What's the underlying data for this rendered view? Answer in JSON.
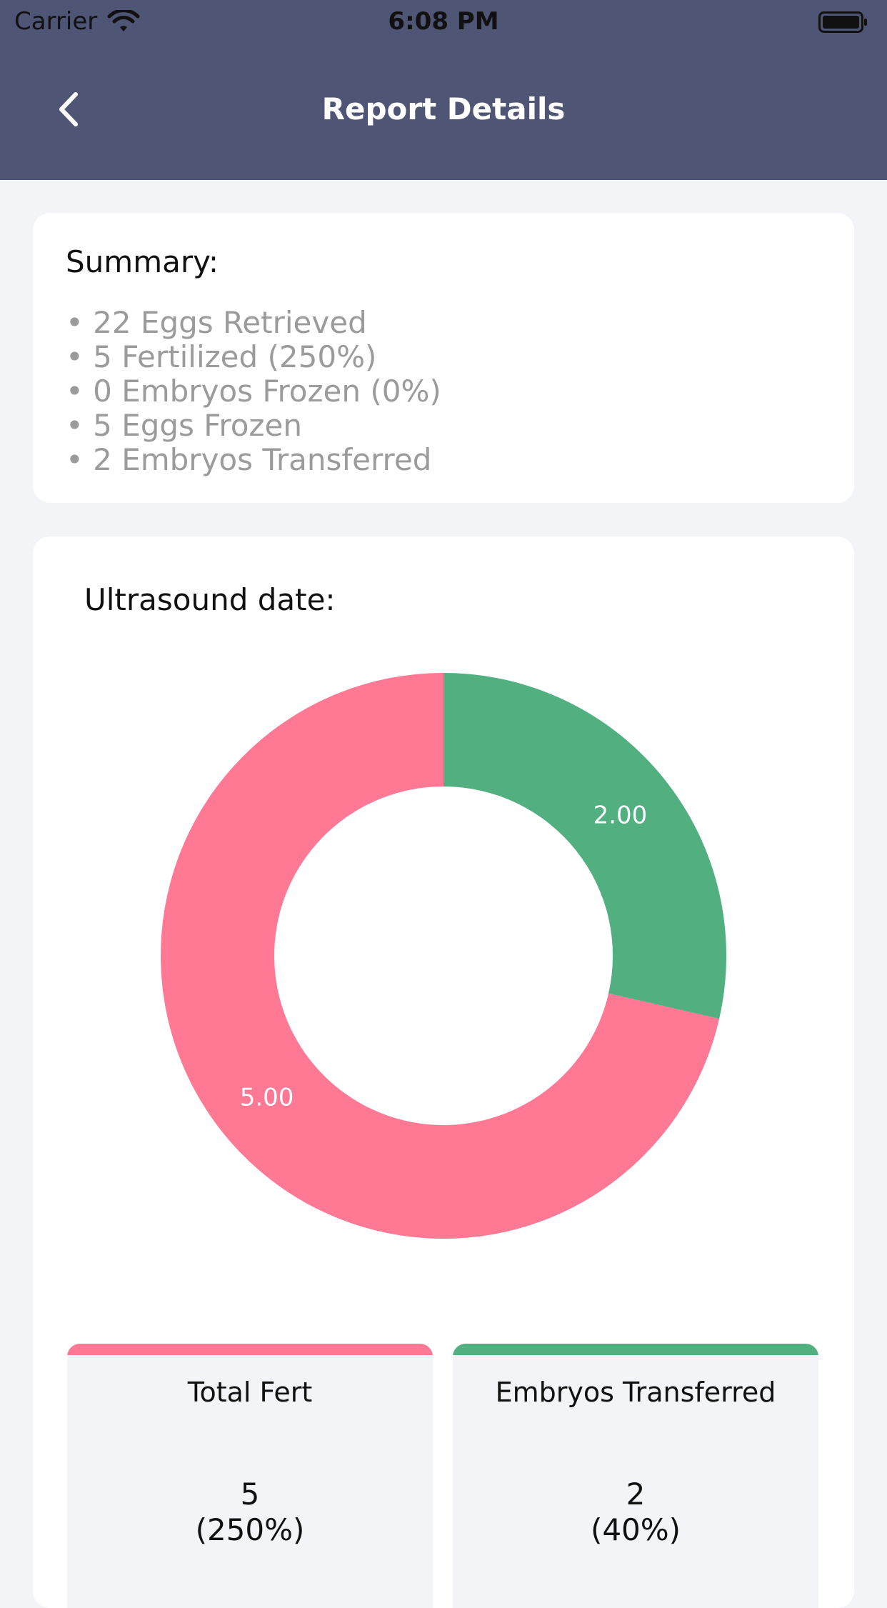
{
  "status_bar": {
    "carrier": "Carrier",
    "time": "6:08 PM"
  },
  "header": {
    "title": "Report Details",
    "back_icon": "chevron-left-icon"
  },
  "summary": {
    "heading": "Summary:",
    "items": [
      "22 Eggs Retrieved",
      "5 Fertilized (250%)",
      "0 Embryos Frozen (0%)",
      "5 Eggs Frozen",
      "2 Embryos Transferred"
    ]
  },
  "chart": {
    "heading": "Ultrasound date:",
    "chart_data": {
      "type": "pie",
      "donut": true,
      "slices": [
        {
          "name": "Embryos Transferred",
          "value": 2,
          "label": "2.00",
          "color": "#52af80"
        },
        {
          "name": "Total Fert",
          "value": 5,
          "label": "5.00",
          "color": "#ff7894"
        }
      ]
    }
  },
  "stats": [
    {
      "label": "Total Fert",
      "value": "5",
      "percent": "(250%)",
      "color": "#ff7894"
    },
    {
      "label": "Embryos Transferred",
      "value": "2",
      "percent": "(40%)",
      "color": "#52af80"
    }
  ],
  "colors": {
    "header_bg": "#4f5575",
    "page_bg": "#f3f4f8",
    "muted_text": "#9b9b9b"
  }
}
